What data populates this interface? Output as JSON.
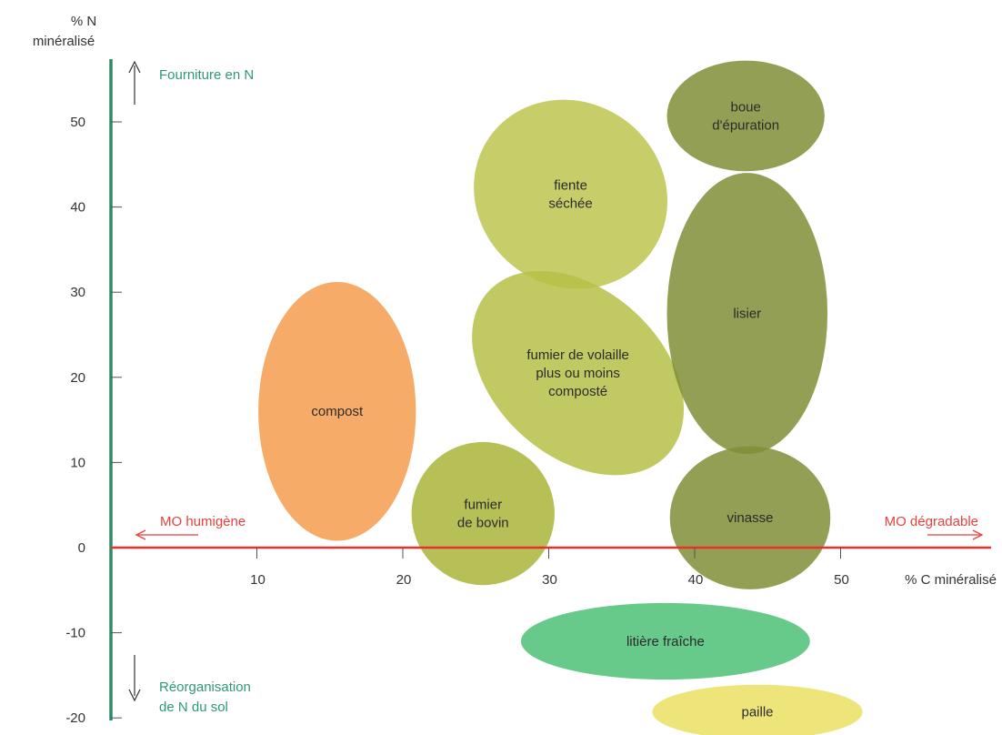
{
  "chart_data": {
    "type": "scatter",
    "xlabel": "% C minéralisé",
    "ylabel": [
      "% N",
      "minéralisé"
    ],
    "x_ticks": [
      10,
      20,
      30,
      40,
      50
    ],
    "y_ticks": [
      50,
      40,
      30,
      20,
      10,
      0,
      -10,
      -20
    ],
    "xlim": [
      0,
      60
    ],
    "ylim": [
      -20,
      57
    ],
    "annotations": {
      "up": "Fourniture en N",
      "down": [
        "Réorganisation",
        "de N du sol"
      ],
      "left": "MO humigène",
      "right": "MO dégradable"
    },
    "regions": [
      {
        "name": "compost",
        "lines": [
          "compost"
        ],
        "cx": 15.5,
        "cy": 16,
        "rx": 5.4,
        "ry": 15.2,
        "angle": 0,
        "color": "#f59d4d"
      },
      {
        "name": "fiente-sechee",
        "lines": [
          "fiente",
          "séchée"
        ],
        "cx": 31.5,
        "cy": 41.5,
        "rx": 6.8,
        "ry": 10.8,
        "angle": 36,
        "color": "#bcc44f"
      },
      {
        "name": "fumier-volaille",
        "lines": [
          "fumier de volaille",
          "plus ou moins",
          "composté"
        ],
        "cx": 32,
        "cy": 20.5,
        "rx": 8.3,
        "ry": 9.8,
        "angle": 42,
        "color": "#b6bf46"
      },
      {
        "name": "fumier-bovin",
        "lines": [
          "fumier",
          "de bovin"
        ],
        "cx": 25.5,
        "cy": 4,
        "rx": 4.9,
        "ry": 8.4,
        "angle": 40,
        "color": "#aab43a"
      },
      {
        "name": "boue-epuration",
        "lines": [
          "boue",
          "d'épuration"
        ],
        "cx": 43.5,
        "cy": 50.7,
        "rx": 5.4,
        "ry": 6.5,
        "angle": 0,
        "color": "#7f8e36"
      },
      {
        "name": "lisier",
        "lines": [
          "lisier"
        ],
        "cx": 43.6,
        "cy": 27.5,
        "rx": 5.5,
        "ry": 16.5,
        "angle": 0,
        "color": "#7f8e36"
      },
      {
        "name": "vinasse",
        "lines": [
          "vinasse"
        ],
        "cx": 43.8,
        "cy": 3.5,
        "rx": 5.5,
        "ry": 8.4,
        "angle": 0,
        "color": "#7f8e36"
      },
      {
        "name": "litiere-fraiche",
        "lines": [
          "litière fraîche"
        ],
        "cx": 38,
        "cy": -11,
        "rx": 9.9,
        "ry": 4.5,
        "angle": 0,
        "color": "#4cbf75"
      },
      {
        "name": "paille",
        "lines": [
          "paille"
        ],
        "cx": 44.3,
        "cy": -19.3,
        "rx": 7.2,
        "ry": 3.2,
        "angle": 0,
        "color": "#ebe163"
      }
    ],
    "colors": {
      "y_axis": "#2e8b66",
      "x_axis": "#e8302e",
      "green_text": "#2e9a72",
      "red_text": "#e8413d"
    },
    "grid": false
  }
}
